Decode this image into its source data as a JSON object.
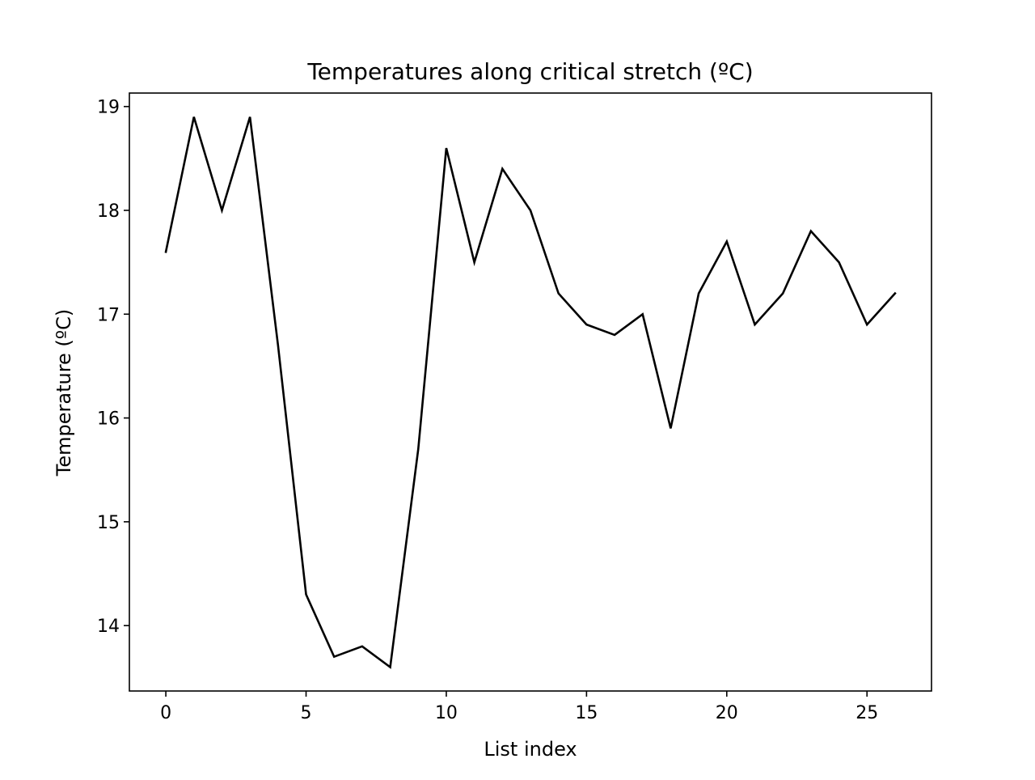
{
  "chart_data": {
    "type": "line",
    "title": "Temperatures along critical stretch (ºC)",
    "xlabel": "List index",
    "ylabel": "Temperature (ºC)",
    "x": [
      0,
      1,
      2,
      3,
      4,
      5,
      6,
      7,
      8,
      9,
      10,
      11,
      12,
      13,
      14,
      15,
      16,
      17,
      18,
      19,
      20,
      21,
      22,
      23,
      24,
      25,
      26
    ],
    "series": [
      {
        "values": [
          17.6,
          18.9,
          18.0,
          18.9,
          16.7,
          14.3,
          13.7,
          13.8,
          13.6,
          15.7,
          18.6,
          17.5,
          18.4,
          18.0,
          17.2,
          16.9,
          16.8,
          17.0,
          15.9,
          17.2,
          17.7,
          16.9,
          17.2,
          17.8,
          17.5,
          16.9,
          17.2
        ],
        "color": "#000000"
      }
    ],
    "xlim": [
      -1.3,
      27.3
    ],
    "ylim": [
      13.37,
      19.13
    ],
    "xticks": [
      0,
      5,
      10,
      15,
      20,
      25
    ],
    "yticks": [
      14,
      15,
      16,
      17,
      18,
      19
    ],
    "grid": false,
    "legend": "none"
  }
}
